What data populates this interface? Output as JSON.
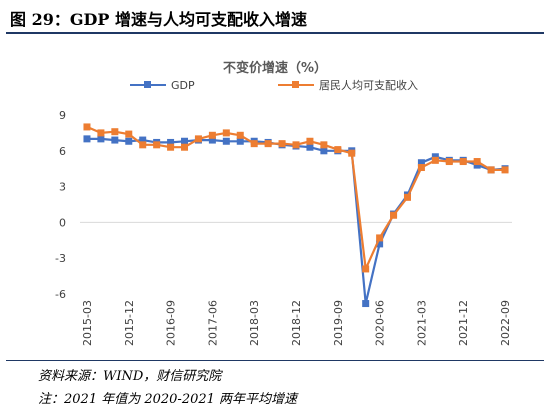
{
  "figure_title": "图 29：GDP 增速与人均可支配收入增速",
  "source": "资料来源：WIND，财信研究院",
  "note": "注：2021 年值为 2020-2021 两年平均增速",
  "colors": {
    "gdp": "#4472c4",
    "income": "#ed7d31",
    "rule": "#1f3864"
  },
  "chart_data": {
    "type": "line",
    "title": "不变价增速（%）",
    "ylim": [
      -6,
      9
    ],
    "yticks": [
      -6,
      -3,
      0,
      3,
      6,
      9
    ],
    "x": [
      "2015-03",
      "2015-06",
      "2015-09",
      "2015-12",
      "2016-03",
      "2016-06",
      "2016-09",
      "2016-12",
      "2017-03",
      "2017-06",
      "2017-09",
      "2017-12",
      "2018-03",
      "2018-06",
      "2018-09",
      "2018-12",
      "2019-03",
      "2019-06",
      "2019-09",
      "2019-12",
      "2020-03",
      "2020-06",
      "2020-09",
      "2020-12",
      "2021-03",
      "2021-06",
      "2021-09",
      "2021-12",
      "2022-03",
      "2022-06",
      "2022-09"
    ],
    "xtick_labels": [
      "2015-03",
      "2015-12",
      "2016-09",
      "2017-06",
      "2018-03",
      "2018-12",
      "2019-09",
      "2020-06",
      "2021-03",
      "2021-12",
      "2022-09"
    ],
    "legend_position": "top",
    "series": [
      {
        "name": "GDP",
        "color": "#4472c4",
        "values": [
          7.0,
          7.0,
          6.9,
          6.8,
          6.9,
          6.7,
          6.7,
          6.8,
          6.9,
          6.9,
          6.8,
          6.8,
          6.8,
          6.7,
          6.5,
          6.4,
          6.3,
          6.0,
          6.0,
          6.0,
          -6.8,
          -1.8,
          0.7,
          2.3,
          5.0,
          5.5,
          5.2,
          5.2,
          4.8,
          4.4,
          4.5
        ]
      },
      {
        "name": "居民人均可支配收入",
        "color": "#ed7d31",
        "values": [
          8.0,
          7.5,
          7.6,
          7.4,
          6.5,
          6.5,
          6.3,
          6.3,
          7.0,
          7.3,
          7.5,
          7.3,
          6.6,
          6.6,
          6.6,
          6.5,
          6.8,
          6.5,
          6.1,
          5.8,
          -3.9,
          -1.3,
          0.6,
          2.1,
          4.6,
          5.2,
          5.1,
          5.1,
          5.1,
          4.4,
          4.4
        ]
      }
    ]
  }
}
